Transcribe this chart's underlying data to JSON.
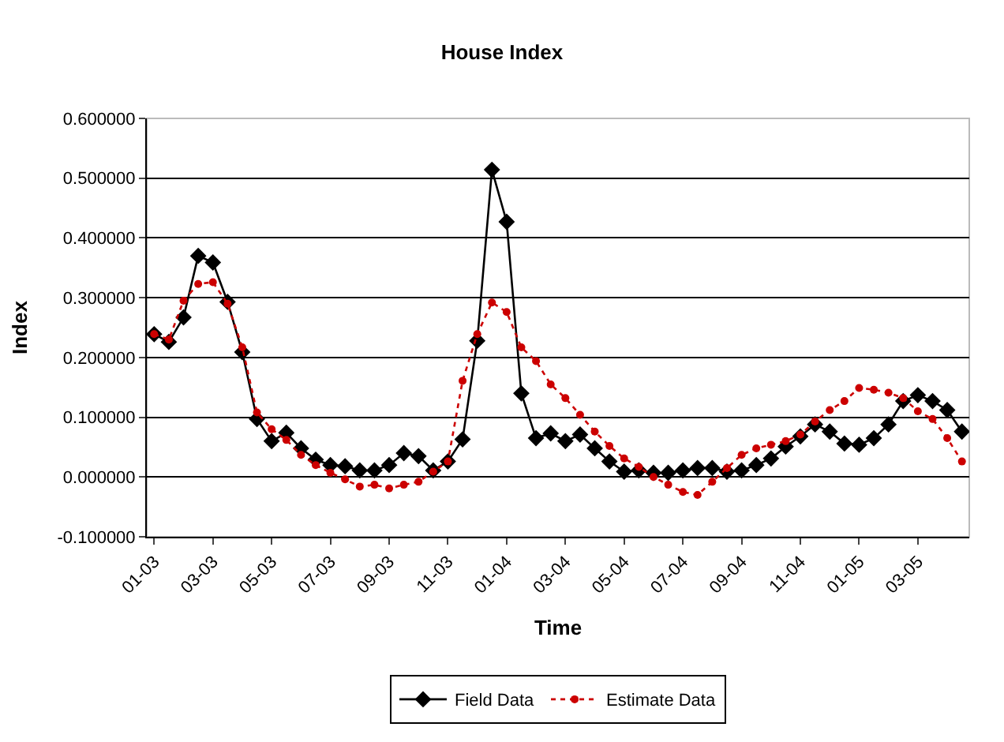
{
  "chart_data": {
    "type": "line",
    "title": "House Index",
    "xlabel": "Time",
    "ylabel": "Index",
    "categories": [
      "01-03",
      null,
      null,
      null,
      "03-03",
      null,
      null,
      null,
      "05-03",
      null,
      null,
      null,
      "07-03",
      null,
      null,
      null,
      "09-03",
      null,
      null,
      null,
      "11-03",
      null,
      null,
      null,
      "01-04",
      null,
      null,
      null,
      "03-04",
      null,
      null,
      null,
      "05-04",
      null,
      null,
      null,
      "07-04",
      null,
      null,
      null,
      "09-04",
      null,
      null,
      null,
      "11-04",
      null,
      null,
      null,
      "01-05",
      null,
      null,
      null,
      "03-05",
      null,
      null,
      null
    ],
    "series": [
      {
        "name": "Field Data",
        "color": "#000000",
        "marker": "diamond",
        "line_style": "solid",
        "values": [
          0.239,
          0.226,
          0.267,
          0.37,
          0.359,
          0.293,
          0.209,
          0.097,
          0.06,
          0.074,
          0.048,
          0.029,
          0.02,
          0.018,
          0.011,
          0.011,
          0.02,
          0.04,
          0.035,
          0.011,
          0.026,
          0.063,
          0.228,
          0.514,
          0.427,
          0.14,
          0.065,
          0.073,
          0.06,
          0.071,
          0.048,
          0.026,
          0.009,
          0.011,
          0.007,
          0.007,
          0.011,
          0.015,
          0.015,
          0.009,
          0.011,
          0.02,
          0.031,
          0.051,
          0.068,
          0.088,
          0.076,
          0.056,
          0.054,
          0.065,
          0.088,
          0.127,
          0.137,
          0.127,
          0.112,
          0.076
        ]
      },
      {
        "name": "Estimate Data",
        "color": "#cc0000",
        "marker": "circle",
        "line_style": "dotted",
        "values": [
          0.239,
          0.23,
          0.295,
          0.323,
          0.326,
          0.29,
          0.217,
          0.108,
          0.08,
          0.062,
          0.037,
          0.02,
          0.007,
          -0.004,
          -0.016,
          -0.013,
          -0.019,
          -0.013,
          -0.008,
          0.009,
          0.026,
          0.161,
          0.239,
          0.292,
          0.276,
          0.217,
          0.194,
          0.155,
          0.132,
          0.104,
          0.076,
          0.052,
          0.031,
          0.017,
          0.0,
          -0.013,
          -0.025,
          -0.03,
          -0.008,
          0.015,
          0.037,
          0.048,
          0.054,
          0.06,
          0.071,
          0.093,
          0.112,
          0.127,
          0.149,
          0.146,
          0.141,
          0.132,
          0.11,
          0.097,
          0.065,
          0.026
        ]
      }
    ],
    "ylim": [
      -0.1,
      0.6
    ],
    "yticks": [
      {
        "value": -0.1,
        "label": "-0.100000"
      },
      {
        "value": 0.0,
        "label": "0.000000"
      },
      {
        "value": 0.1,
        "label": "0.100000"
      },
      {
        "value": 0.2,
        "label": "0.200000"
      },
      {
        "value": 0.3,
        "label": "0.300000"
      },
      {
        "value": 0.4,
        "label": "0.400000"
      },
      {
        "value": 0.5,
        "label": "0.500000"
      },
      {
        "value": 0.6,
        "label": "0.600000"
      }
    ],
    "grid": "y",
    "legend": "bottom"
  }
}
